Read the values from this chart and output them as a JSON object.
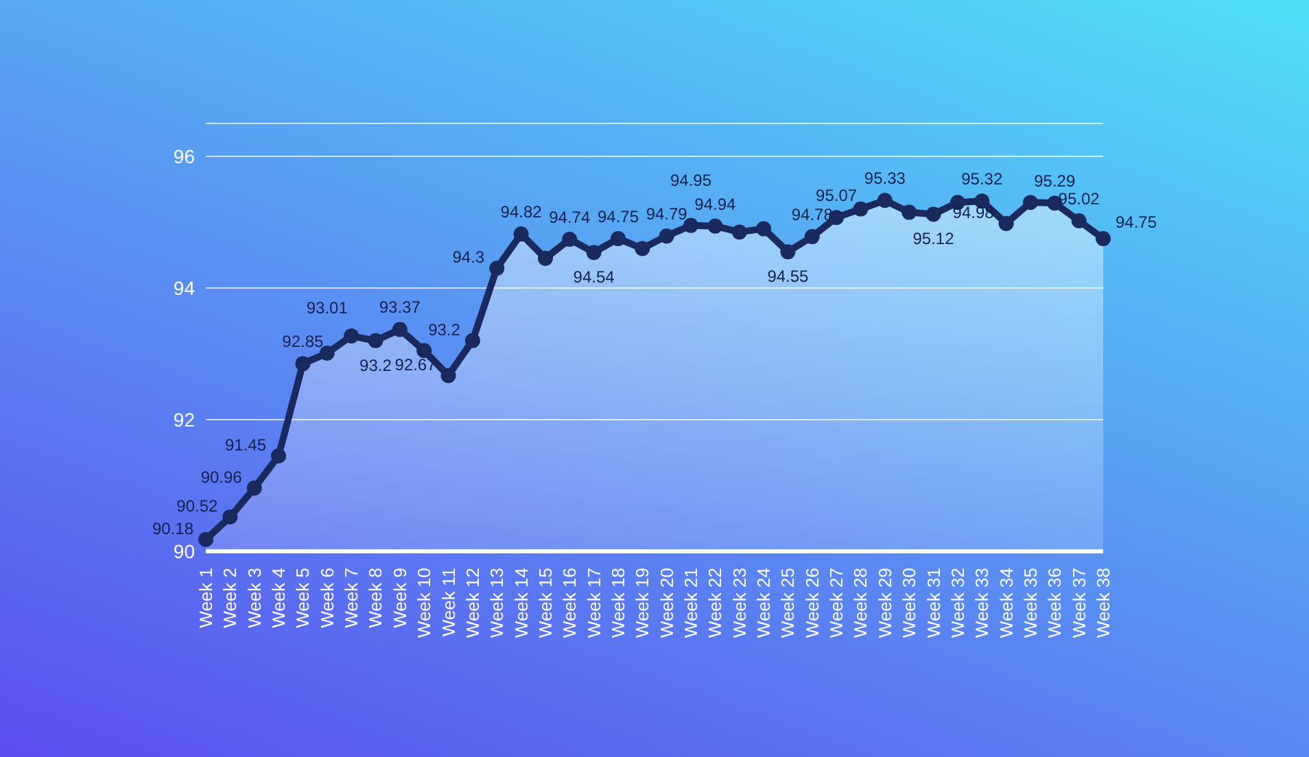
{
  "chart_data": {
    "type": "area",
    "categories": [
      "Week 1",
      "Week 2",
      "Week 3",
      "Week 4",
      "Week 5",
      "Week 6",
      "Week 7",
      "Week 8",
      "Week 9",
      "Week 10",
      "Week 11",
      "Week 12",
      "Week 13",
      "Week 14",
      "Week 15",
      "Week 16",
      "Week 17",
      "Week 18",
      "Week 19",
      "Week 20",
      "Week 21",
      "Week 22",
      "Week 23",
      "Week 24",
      "Week 25",
      "Week 26",
      "Week 27",
      "Week 28",
      "Week 29",
      "Week 30",
      "Week 31",
      "Week 32",
      "Week 33",
      "Week 34",
      "Week 35",
      "Week 36",
      "Week 37",
      "Week 38"
    ],
    "series": [
      {
        "color": "#1b2a5e",
        "values": [
          90.18,
          90.52,
          90.96,
          91.45,
          92.85,
          93.01,
          93.27,
          93.2,
          93.37,
          93.05,
          92.67,
          93.2,
          94.3,
          94.82,
          94.45,
          94.74,
          94.54,
          94.75,
          94.6,
          94.79,
          94.95,
          94.94,
          94.85,
          94.9,
          94.55,
          94.78,
          95.07,
          95.2,
          95.33,
          95.15,
          95.12,
          95.3,
          95.32,
          94.98,
          95.3,
          95.29,
          95.02,
          94.75
        ],
        "value_labels": [
          "90.18",
          "90.52",
          "90.96",
          "91.45",
          "92.85",
          "93.01",
          null,
          "93.2",
          "93.37",
          null,
          "92.67",
          "93.2",
          "94.3",
          "94.82",
          null,
          "94.74",
          "94.54",
          "94.75",
          null,
          "94.79",
          "94.95",
          "94.94",
          null,
          null,
          "94.55",
          "94.78",
          "95.07",
          null,
          "95.33",
          null,
          "95.12",
          null,
          "95.32",
          "94.98",
          null,
          "95.29",
          "95.02",
          "94.75"
        ]
      }
    ],
    "ylim": [
      90,
      96.5
    ],
    "yticks": [
      90,
      92,
      94,
      96
    ],
    "grid": "y",
    "marker": "circle"
  }
}
